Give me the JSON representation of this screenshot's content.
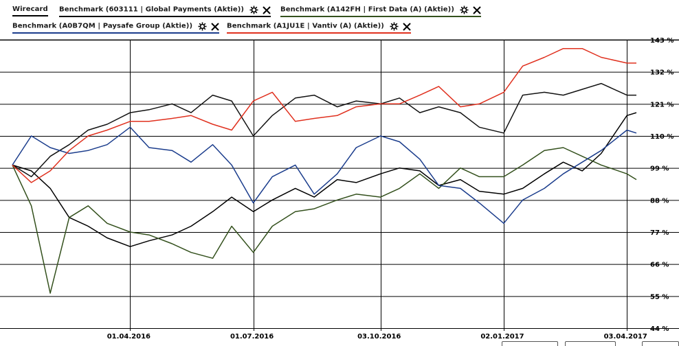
{
  "legend": [
    {
      "label": "Wirecard",
      "color": "#000000",
      "controls": false
    },
    {
      "label": "Benchmark (603111 | Global Payments (Aktie))",
      "color": "#111111",
      "controls": true
    },
    {
      "label": "Benchmark (A142FH | First Data (A) (Aktie))",
      "color": "#33501c",
      "controls": true
    },
    {
      "label": "Benchmark (A0B7QM | Paysafe Group (Aktie))",
      "color": "#1a3c8c",
      "controls": true
    },
    {
      "label": "Benchmark (A1JU1E | Vantiv (A) (Aktie))",
      "color": "#e0301e",
      "controls": true
    }
  ],
  "chart_data": {
    "type": "line",
    "ylim": [
      44,
      143
    ],
    "yticks": [
      143,
      132,
      121,
      110,
      99,
      88,
      77,
      66,
      55,
      44
    ],
    "ytick_labels": [
      "143 %",
      "132 %",
      "121 %",
      "110 %",
      "99 %",
      "88 %",
      "77 %",
      "66 %",
      "55 %",
      "44 %"
    ],
    "xticks": [
      "01.04.2016",
      "01.07.2016",
      "03.10.2016",
      "02.01.2017",
      "03.04.2017"
    ],
    "grid": true,
    "x": [
      "2016-01-05",
      "2016-01-19",
      "2016-02-02",
      "2016-02-16",
      "2016-03-01",
      "2016-03-15",
      "2016-04-01",
      "2016-04-15",
      "2016-05-02",
      "2016-05-16",
      "2016-06-01",
      "2016-06-15",
      "2016-07-01",
      "2016-07-15",
      "2016-08-01",
      "2016-08-15",
      "2016-09-01",
      "2016-09-15",
      "2016-10-03",
      "2016-10-17",
      "2016-11-01",
      "2016-11-15",
      "2016-12-01",
      "2016-12-15",
      "2017-01-02",
      "2017-01-16",
      "2017-02-01",
      "2017-02-15",
      "2017-03-01",
      "2017-03-15",
      "2017-04-03",
      "2017-04-10"
    ],
    "series": [
      {
        "name": "Wirecard",
        "color": "#000000",
        "values": [
          100,
          98,
          92,
          82,
          79,
          75,
          72,
          74,
          76,
          79,
          84,
          89,
          84,
          88,
          92,
          89,
          95,
          94,
          97,
          99,
          98,
          93,
          95,
          91,
          90,
          92,
          97,
          101,
          98,
          104,
          117,
          118
        ]
      },
      {
        "name": "Benchmark (603111 | Global Payments (Aktie))",
        "color": "#111111",
        "values": [
          100,
          96,
          103,
          107,
          112,
          114,
          118,
          119,
          121,
          118,
          124,
          122,
          110,
          117,
          123,
          124,
          120,
          122,
          121,
          123,
          118,
          120,
          118,
          113,
          111,
          124,
          125,
          124,
          126,
          128,
          124,
          124
        ]
      },
      {
        "name": "Benchmark (A142FH | First Data (A) (Aktie))",
        "color": "#33501c",
        "values": [
          100,
          86,
          56,
          82,
          86,
          80,
          77,
          76,
          73,
          70,
          68,
          79,
          70,
          79,
          84,
          85,
          88,
          90,
          89,
          92,
          97,
          92,
          99,
          96,
          96,
          100,
          105,
          106,
          103,
          100,
          97,
          95
        ]
      },
      {
        "name": "Benchmark (A0B7QM | Paysafe Group (Aktie))",
        "color": "#1a3c8c",
        "values": [
          100,
          110,
          106,
          104,
          105,
          107,
          113,
          106,
          105,
          101,
          107,
          100,
          87,
          96,
          100,
          90,
          97,
          106,
          110,
          108,
          102,
          93,
          92,
          87,
          80,
          88,
          92,
          97,
          101,
          105,
          112,
          111
        ]
      },
      {
        "name": "Benchmark (A1JU1E | Vantiv (A) (Aktie))",
        "color": "#e0301e",
        "values": [
          100,
          94,
          98,
          105,
          110,
          112,
          115,
          115,
          116,
          117,
          114,
          112,
          122,
          125,
          115,
          116,
          117,
          120,
          121,
          121,
          124,
          127,
          120,
          121,
          125,
          134,
          137,
          140,
          140,
          137,
          135,
          135
        ]
      }
    ]
  }
}
